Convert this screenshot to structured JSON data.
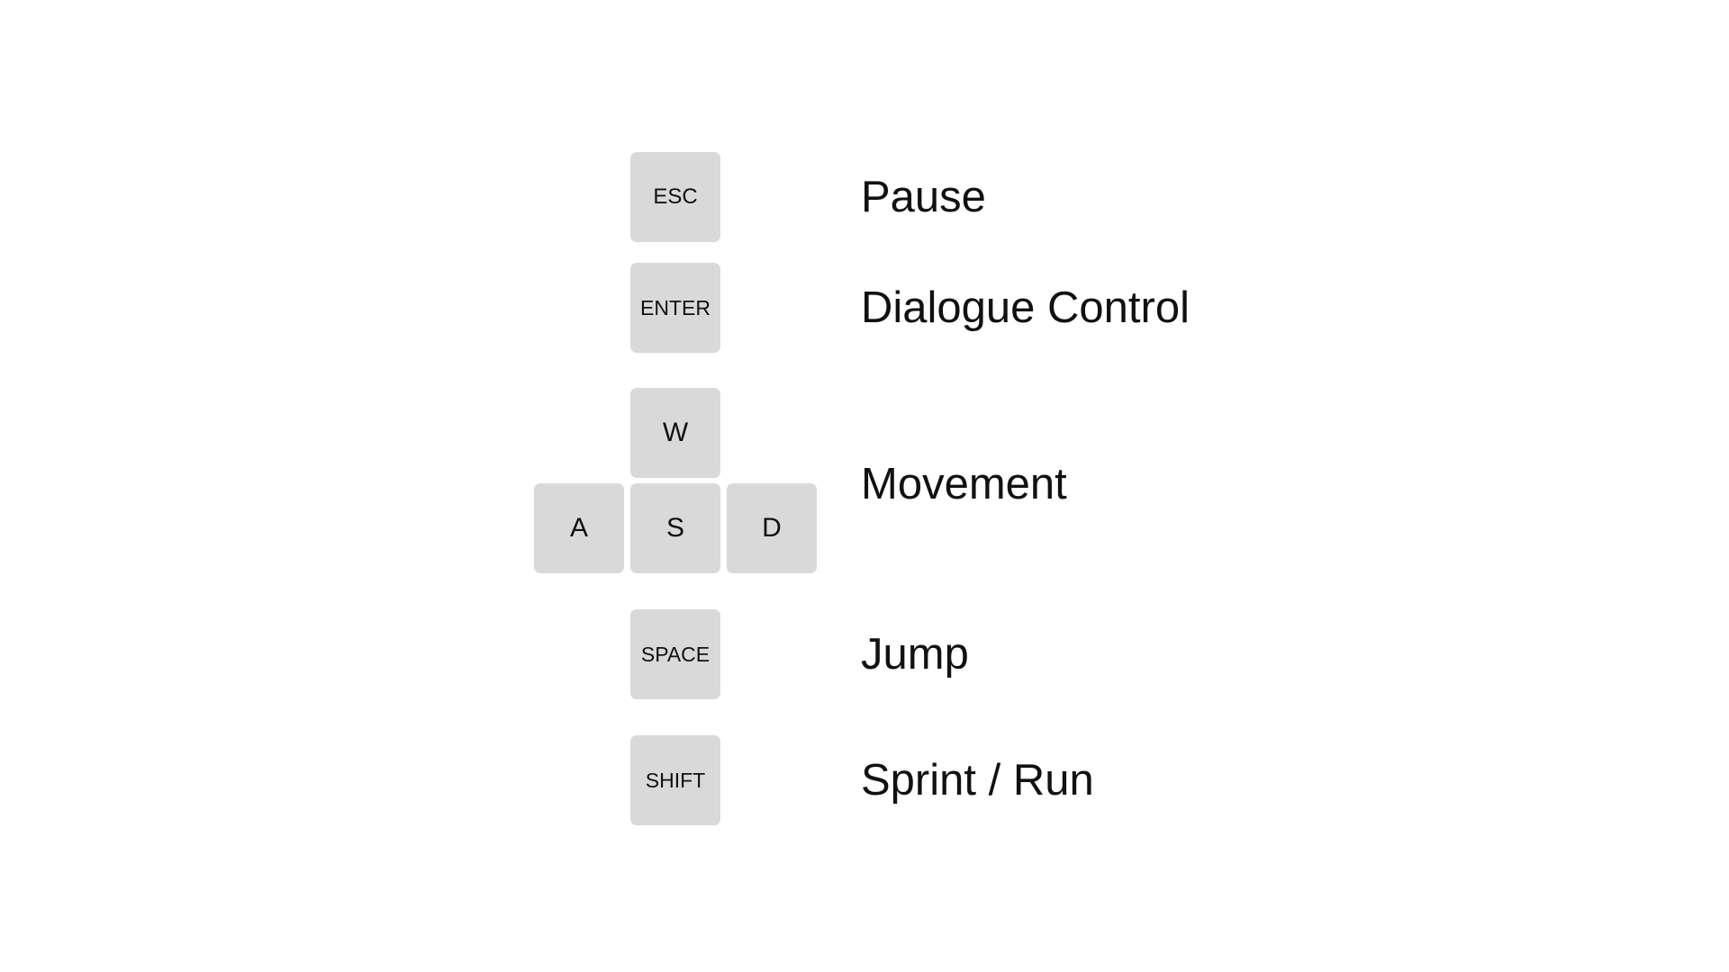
{
  "colors": {
    "background": "#ffffff",
    "key_fill": "#d9d9d9",
    "text": "#111111"
  },
  "controls": {
    "pause": {
      "key": "ESC",
      "action": "Pause"
    },
    "dialogue": {
      "key": "ENTER",
      "action": "Dialogue Control"
    },
    "movement": {
      "keys": {
        "up": "W",
        "left": "A",
        "down": "S",
        "right": "D"
      },
      "action": "Movement"
    },
    "jump": {
      "key": "SPACE",
      "action": "Jump"
    },
    "sprint": {
      "key": "SHIFT",
      "action": "Sprint / Run"
    }
  }
}
